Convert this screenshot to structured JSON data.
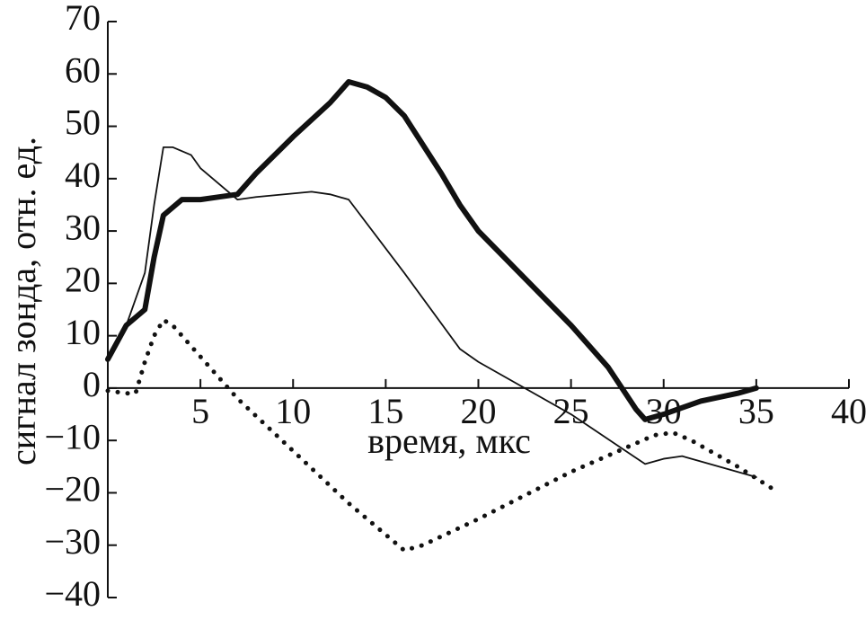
{
  "chart_data": {
    "type": "line",
    "x_label": "время, мкс",
    "y_label": "сигнал зонда, отн. ед.",
    "xlim": [
      0,
      40
    ],
    "xticks": [
      5,
      10,
      15,
      20,
      25,
      30,
      35,
      40
    ],
    "ylim": [
      -40,
      70
    ],
    "yticks": [
      {
        "value": -40,
        "label": "−40"
      },
      {
        "value": -30,
        "label": "−30"
      },
      {
        "value": -20,
        "label": "−20"
      },
      {
        "value": -10,
        "label": "−10"
      },
      0,
      10,
      20,
      30,
      40,
      50,
      60,
      70
    ],
    "series": [
      {
        "color": "#111111",
        "width": 6,
        "dash": "none",
        "x": [
          0,
          1,
          2,
          2.5,
          3,
          4,
          5,
          6,
          7,
          8,
          10,
          12,
          13,
          14,
          15,
          16,
          18,
          19,
          20,
          25,
          27,
          28.5,
          29,
          30,
          32,
          34,
          35
        ],
        "values": [
          5.5,
          12,
          15,
          25,
          33,
          36,
          36,
          36.5,
          37,
          41,
          48,
          54.5,
          58.5,
          57.5,
          55.5,
          52,
          41,
          35,
          30,
          12,
          4,
          -4,
          -6,
          -5,
          -2.5,
          -1,
          0
        ]
      },
      {
        "color": "#111111",
        "width": 1.8,
        "dash": "none",
        "x": [
          0,
          1,
          2,
          2.5,
          3,
          3.5,
          4.5,
          5,
          7,
          8,
          11,
          12,
          13,
          16,
          19,
          20,
          25,
          29,
          30,
          31,
          35
        ],
        "values": [
          5,
          12,
          22,
          35,
          46,
          46,
          44.5,
          42,
          36,
          36.5,
          37.5,
          37,
          36,
          22,
          7.5,
          5,
          -5,
          -14.5,
          -13.5,
          -13,
          -17
        ]
      },
      {
        "color": "#111111",
        "width": 5,
        "dash": "0.1 11",
        "x": [
          0,
          1,
          1.5,
          2,
          2.5,
          3,
          3.5,
          4,
          6,
          7,
          10,
          13,
          16,
          17,
          20,
          25,
          29.5,
          30.5,
          31.5,
          34,
          36
        ],
        "values": [
          -0.5,
          -1,
          -1,
          5,
          10,
          13,
          12,
          10,
          2,
          -2,
          -12,
          -22,
          -31,
          -30,
          -25,
          -16,
          -9,
          -8.5,
          -10,
          -15,
          -19.5
        ]
      }
    ]
  }
}
